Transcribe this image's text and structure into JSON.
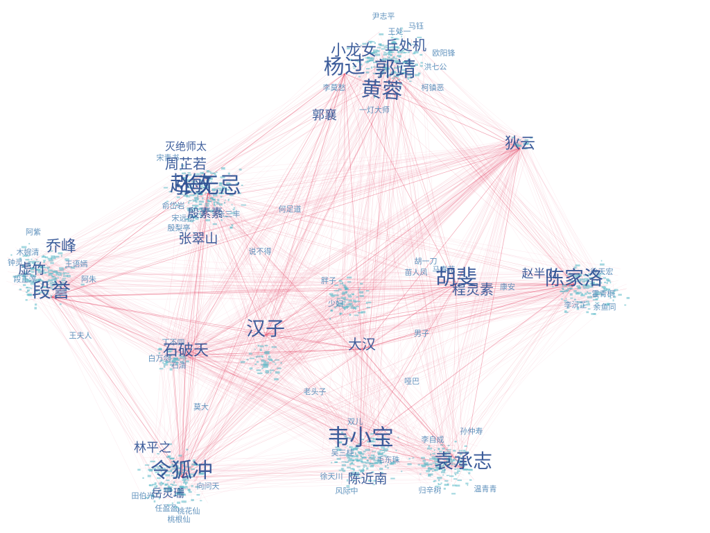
{
  "colors": {
    "edge": "#e23a5a",
    "edge_faint": "#f2a0b4",
    "label_major": "#2c4f92",
    "label_mid": "#4f86b6",
    "label_minor": "#58b8c6",
    "background": "#ffffff"
  },
  "labels_major": [
    "杨过",
    "郭靖",
    "黄蓉",
    "小龙女",
    "丘处机",
    "张无忌",
    "赵敏",
    "周芷若",
    "张翠山",
    "殷素素",
    "灭绝师太",
    "段誉",
    "乔峰",
    "虚竹",
    "汉子",
    "大汉",
    "胡斐",
    "陈家洛",
    "程灵素",
    "赵半山",
    "石破天",
    "令狐冲",
    "林平之",
    "岳灵珊",
    "韦小宝",
    "陈近南",
    "袁承志",
    "狄云",
    "郭襄"
  ],
  "labels_mid": [
    "尹志平",
    "马钰",
    "王处一",
    "李莫愁",
    "洪七公",
    "欧阳锋",
    "柯镇恶",
    "一灯大师",
    "何足道",
    "张三丰",
    "宋远桥",
    "殷梨亭",
    "宋青书",
    "俞岱岩",
    "说不得",
    "王夫人",
    "木婉清",
    "钟灵",
    "段正淳",
    "阿紫",
    "王语嫣",
    "阿朱",
    "苗人凤",
    "胡一刀",
    "马春花",
    "康安",
    "霍青桐",
    "余鱼同",
    "李沅芷",
    "徐天宏",
    "丁不四",
    "石清",
    "白万剑",
    "老头子",
    "莫大",
    "任盈盈",
    "向问天",
    "田伯光",
    "双儿",
    "吴三桂",
    "哑巴",
    "李自成",
    "孙仲寿",
    "归辛树",
    "温青青",
    "胖子",
    "少妇",
    "男子",
    "徐天川",
    "风际中",
    "毛东珠",
    "桃根仙",
    "桃花仙"
  ]
}
